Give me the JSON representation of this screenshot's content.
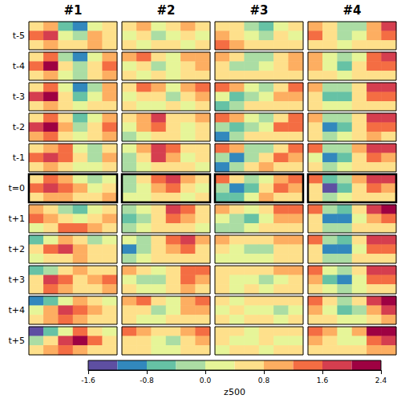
{
  "chart_data": {
    "type": "heatmap",
    "tick_labels": false,
    "columns": [
      "#1",
      "#2",
      "#3",
      "#4"
    ],
    "rows": [
      "t-5",
      "t-4",
      "t-3",
      "t-2",
      "t-1",
      "t=0",
      "t+1",
      "t+2",
      "t+3",
      "t+4",
      "t+5"
    ],
    "panels": [
      [
        [
          [
            0.4,
            0.8,
            -0.8,
            -1.0,
            0.0,
            0.4
          ],
          [
            1.2,
            1.6,
            0.0,
            -0.4,
            0.8,
            0.4
          ],
          [
            0.4,
            0.8,
            0.4,
            0.4,
            0.8,
            0.4
          ]
        ],
        [
          [
            0.4,
            0.8,
            0.0,
            0.4,
            0.8,
            0.4
          ],
          [
            0.0,
            0.4,
            -0.4,
            0.0,
            0.4,
            0.0
          ],
          [
            0.4,
            0.0,
            0.4,
            0.4,
            0.0,
            0.4
          ]
        ],
        [
          [
            0.4,
            0.4,
            -0.4,
            -0.8,
            0.0,
            0.4
          ],
          [
            0.8,
            0.4,
            0.0,
            -0.4,
            0.4,
            0.0
          ],
          [
            1.2,
            0.8,
            0.4,
            0.4,
            0.4,
            0.4
          ]
        ],
        [
          [
            0.8,
            0.4,
            -0.4,
            -0.4,
            0.8,
            1.6
          ],
          [
            1.2,
            0.4,
            -0.4,
            0.0,
            0.8,
            1.2
          ],
          [
            0.4,
            0.4,
            0.0,
            0.4,
            0.4,
            0.4
          ]
        ]
      ],
      [
        [
          [
            0.4,
            1.2,
            -0.4,
            -1.2,
            0.0,
            0.8
          ],
          [
            1.2,
            2.0,
            0.4,
            -0.4,
            0.4,
            1.2
          ],
          [
            0.4,
            0.8,
            0.0,
            -0.4,
            0.4,
            0.8
          ]
        ],
        [
          [
            0.8,
            1.2,
            0.4,
            0.0,
            0.8,
            0.8
          ],
          [
            0.0,
            0.4,
            -0.4,
            0.0,
            0.4,
            0.8
          ],
          [
            0.4,
            0.0,
            0.4,
            0.0,
            0.4,
            0.4
          ]
        ],
        [
          [
            0.8,
            0.4,
            -0.4,
            -0.4,
            0.4,
            0.8
          ],
          [
            0.4,
            -0.4,
            -0.4,
            0.0,
            0.4,
            0.8
          ],
          [
            0.4,
            0.4,
            0.4,
            0.4,
            0.4,
            0.4
          ]
        ],
        [
          [
            0.8,
            0.0,
            -0.4,
            0.0,
            1.2,
            1.6
          ],
          [
            0.8,
            0.0,
            -0.8,
            0.4,
            1.2,
            1.2
          ],
          [
            0.4,
            0.4,
            0.0,
            0.4,
            0.4,
            0.4
          ]
        ]
      ],
      [
        [
          [
            0.4,
            1.2,
            0.0,
            -1.2,
            -0.4,
            0.8
          ],
          [
            1.6,
            2.0,
            0.4,
            -0.8,
            0.0,
            0.8
          ],
          [
            0.4,
            0.8,
            0.4,
            0.0,
            0.4,
            0.4
          ]
        ],
        [
          [
            0.4,
            1.2,
            0.8,
            0.0,
            0.8,
            1.2
          ],
          [
            0.0,
            0.4,
            0.4,
            -0.4,
            0.4,
            0.8
          ],
          [
            0.4,
            0.0,
            0.0,
            0.4,
            0.0,
            0.4
          ]
        ],
        [
          [
            1.2,
            0.8,
            0.0,
            -0.4,
            0.4,
            1.2
          ],
          [
            0.0,
            -0.8,
            -0.4,
            0.0,
            0.8,
            0.8
          ],
          [
            -0.8,
            -0.4,
            0.4,
            0.4,
            0.4,
            0.4
          ]
        ],
        [
          [
            0.8,
            -0.4,
            -0.4,
            0.4,
            1.6,
            1.6
          ],
          [
            0.4,
            -0.8,
            -0.8,
            0.4,
            1.2,
            1.2
          ],
          [
            0.4,
            0.0,
            0.0,
            0.4,
            0.4,
            0.4
          ]
        ]
      ],
      [
        [
          [
            0.4,
            1.2,
            0.4,
            -0.8,
            0.0,
            0.8
          ],
          [
            1.6,
            2.0,
            0.8,
            -0.4,
            0.4,
            1.2
          ],
          [
            0.8,
            1.2,
            0.4,
            0.0,
            0.4,
            0.8
          ]
        ],
        [
          [
            0.4,
            0.8,
            1.6,
            0.4,
            0.4,
            0.8
          ],
          [
            0.0,
            0.8,
            1.2,
            0.4,
            0.0,
            0.4
          ],
          [
            -0.4,
            0.0,
            0.4,
            0.4,
            0.0,
            0.4
          ]
        ],
        [
          [
            1.2,
            0.8,
            0.0,
            -0.4,
            0.4,
            1.2
          ],
          [
            -0.4,
            -0.8,
            -0.4,
            0.0,
            1.2,
            1.2
          ],
          [
            -1.2,
            -0.4,
            0.4,
            0.4,
            0.4,
            0.4
          ]
        ],
        [
          [
            0.8,
            -0.4,
            -0.4,
            0.4,
            1.6,
            1.6
          ],
          [
            0.4,
            -1.2,
            -0.8,
            0.4,
            1.2,
            1.2
          ],
          [
            0.4,
            -0.4,
            0.0,
            0.4,
            0.8,
            0.4
          ]
        ]
      ],
      [
        [
          [
            0.4,
            0.8,
            1.2,
            0.0,
            -0.4,
            0.4
          ],
          [
            1.2,
            1.6,
            1.2,
            0.4,
            -0.4,
            0.8
          ],
          [
            0.4,
            0.8,
            0.4,
            0.0,
            0.0,
            0.4
          ]
        ],
        [
          [
            0.0,
            0.8,
            1.6,
            1.2,
            0.4,
            0.4
          ],
          [
            -0.4,
            0.4,
            1.6,
            0.8,
            0.0,
            0.4
          ],
          [
            -0.4,
            0.0,
            0.4,
            0.4,
            0.4,
            0.0
          ]
        ],
        [
          [
            1.2,
            0.8,
            -0.4,
            -0.4,
            0.4,
            1.2
          ],
          [
            -0.4,
            -1.2,
            -0.4,
            0.4,
            1.2,
            0.8
          ],
          [
            -1.2,
            -0.4,
            0.4,
            0.8,
            0.4,
            0.4
          ]
        ],
        [
          [
            1.2,
            -0.4,
            -0.4,
            0.8,
            1.6,
            1.6
          ],
          [
            0.0,
            -1.2,
            -0.8,
            0.4,
            1.2,
            0.8
          ],
          [
            0.4,
            -0.4,
            0.0,
            0.4,
            0.4,
            0.4
          ]
        ]
      ],
      [
        [
          [
            0.4,
            1.2,
            0.8,
            0.0,
            -0.4,
            0.0
          ],
          [
            1.2,
            1.6,
            1.2,
            0.8,
            0.0,
            0.4
          ],
          [
            0.4,
            0.8,
            0.8,
            0.4,
            0.4,
            0.8
          ]
        ],
        [
          [
            -0.4,
            0.4,
            1.2,
            1.6,
            0.8,
            0.4
          ],
          [
            -0.4,
            0.0,
            0.8,
            1.2,
            0.4,
            0.0
          ],
          [
            0.0,
            0.0,
            0.4,
            0.4,
            0.0,
            0.4
          ]
        ],
        [
          [
            1.2,
            0.4,
            -0.4,
            0.0,
            0.8,
            1.2
          ],
          [
            -0.4,
            -1.2,
            -0.8,
            0.4,
            1.2,
            0.8
          ],
          [
            -0.8,
            -0.8,
            0.0,
            0.8,
            0.4,
            0.4
          ]
        ],
        [
          [
            1.2,
            -0.8,
            -0.4,
            0.8,
            1.6,
            1.6
          ],
          [
            0.4,
            -1.6,
            -0.8,
            0.4,
            1.2,
            0.8
          ],
          [
            0.4,
            -0.4,
            0.0,
            0.4,
            0.4,
            0.4
          ]
        ]
      ],
      [
        [
          [
            0.8,
            0.4,
            -0.4,
            -0.8,
            0.0,
            0.4
          ],
          [
            1.2,
            0.8,
            0.4,
            0.0,
            0.4,
            0.8
          ],
          [
            0.0,
            0.4,
            1.2,
            1.2,
            0.8,
            0.4
          ]
        ],
        [
          [
            -0.4,
            0.0,
            0.4,
            1.6,
            1.2,
            0.4
          ],
          [
            -0.8,
            -0.4,
            0.4,
            1.2,
            0.8,
            0.4
          ],
          [
            -0.4,
            0.0,
            0.4,
            0.4,
            0.4,
            0.0
          ]
        ],
        [
          [
            0.8,
            0.4,
            0.0,
            0.4,
            1.2,
            1.2
          ],
          [
            0.0,
            -0.4,
            -0.8,
            0.0,
            0.8,
            0.8
          ],
          [
            -0.4,
            -0.4,
            0.0,
            0.4,
            0.4,
            0.4
          ]
        ],
        [
          [
            1.2,
            -0.4,
            -0.8,
            0.4,
            1.6,
            2.0
          ],
          [
            0.4,
            -1.2,
            -1.2,
            0.0,
            0.8,
            1.2
          ],
          [
            0.4,
            -0.4,
            -0.4,
            0.4,
            0.4,
            0.4
          ]
        ]
      ],
      [
        [
          [
            -0.8,
            0.0,
            0.8,
            0.4,
            -0.4,
            0.0
          ],
          [
            0.4,
            1.2,
            1.6,
            0.8,
            0.4,
            0.4
          ],
          [
            0.0,
            0.4,
            0.4,
            0.8,
            0.4,
            0.4
          ]
        ],
        [
          [
            0.0,
            -0.4,
            0.4,
            1.2,
            1.6,
            0.8
          ],
          [
            -1.2,
            -0.4,
            0.4,
            0.8,
            1.2,
            0.4
          ],
          [
            -0.4,
            0.0,
            0.4,
            0.4,
            0.4,
            0.4
          ]
        ],
        [
          [
            0.8,
            0.4,
            0.4,
            0.4,
            0.8,
            0.8
          ],
          [
            0.4,
            0.0,
            -0.4,
            -0.4,
            0.4,
            0.4
          ],
          [
            0.0,
            0.0,
            0.0,
            0.0,
            0.4,
            0.4
          ]
        ],
        [
          [
            1.2,
            -0.4,
            -0.8,
            0.4,
            1.6,
            1.6
          ],
          [
            0.4,
            -1.2,
            -1.2,
            0.0,
            1.2,
            1.2
          ],
          [
            0.4,
            -0.4,
            -0.4,
            0.4,
            0.4,
            0.4
          ]
        ]
      ],
      [
        [
          [
            -0.8,
            -0.4,
            0.4,
            0.8,
            0.4,
            0.4
          ],
          [
            0.4,
            1.6,
            1.2,
            0.4,
            0.8,
            1.2
          ],
          [
            0.4,
            1.2,
            0.8,
            0.4,
            0.4,
            0.8
          ]
        ],
        [
          [
            0.8,
            0.4,
            0.0,
            0.4,
            1.2,
            1.2
          ],
          [
            0.0,
            -0.4,
            -0.4,
            0.4,
            1.2,
            0.8
          ],
          [
            0.4,
            0.0,
            0.0,
            0.4,
            0.8,
            0.4
          ]
        ],
        [
          [
            0.4,
            0.4,
            0.4,
            0.4,
            0.8,
            0.8
          ],
          [
            0.4,
            0.0,
            0.0,
            -0.4,
            0.0,
            0.4
          ],
          [
            0.4,
            0.0,
            0.4,
            0.0,
            0.4,
            0.4
          ]
        ],
        [
          [
            1.2,
            0.0,
            -0.4,
            0.4,
            1.6,
            1.6
          ],
          [
            0.8,
            -0.8,
            -1.2,
            0.0,
            1.2,
            1.2
          ],
          [
            0.4,
            0.0,
            -0.4,
            0.0,
            0.4,
            0.4
          ]
        ]
      ],
      [
        [
          [
            -1.2,
            -0.8,
            0.0,
            0.8,
            0.4,
            0.0
          ],
          [
            0.0,
            0.8,
            1.6,
            1.2,
            0.8,
            0.4
          ],
          [
            0.4,
            0.8,
            1.2,
            0.8,
            0.4,
            0.4
          ]
        ],
        [
          [
            0.8,
            1.2,
            0.4,
            0.0,
            0.8,
            1.2
          ],
          [
            0.4,
            0.4,
            -0.4,
            0.0,
            0.8,
            0.8
          ],
          [
            0.4,
            0.0,
            0.0,
            0.4,
            0.4,
            0.4
          ]
        ],
        [
          [
            0.4,
            0.0,
            0.4,
            0.4,
            0.4,
            0.4
          ],
          [
            0.0,
            0.4,
            0.0,
            0.0,
            -0.4,
            0.0
          ],
          [
            0.4,
            0.0,
            0.4,
            0.4,
            0.0,
            0.4
          ]
        ],
        [
          [
            1.2,
            0.4,
            -0.4,
            0.4,
            1.6,
            2.0
          ],
          [
            0.8,
            0.0,
            -0.8,
            -0.4,
            0.8,
            1.6
          ],
          [
            0.4,
            0.4,
            0.0,
            0.0,
            0.4,
            0.8
          ]
        ]
      ],
      [
        [
          [
            -1.6,
            -0.8,
            0.0,
            1.2,
            0.4,
            0.0
          ],
          [
            -0.4,
            0.4,
            1.6,
            2.0,
            1.2,
            0.4
          ],
          [
            0.4,
            0.8,
            1.2,
            0.8,
            0.4,
            0.4
          ]
        ],
        [
          [
            1.2,
            0.8,
            0.4,
            0.4,
            0.8,
            1.2
          ],
          [
            0.4,
            0.4,
            0.0,
            -0.4,
            0.4,
            0.8
          ],
          [
            0.4,
            0.4,
            0.0,
            0.0,
            0.4,
            0.4
          ]
        ],
        [
          [
            0.4,
            0.4,
            0.0,
            0.4,
            0.4,
            0.4
          ],
          [
            0.4,
            0.0,
            0.0,
            0.4,
            0.0,
            0.0
          ],
          [
            0.0,
            0.4,
            0.4,
            0.0,
            0.4,
            0.4
          ]
        ],
        [
          [
            1.2,
            0.8,
            0.0,
            0.8,
            2.0,
            2.0
          ],
          [
            0.8,
            0.4,
            0.0,
            0.0,
            1.2,
            1.6
          ],
          [
            0.4,
            0.4,
            0.4,
            0.4,
            0.8,
            0.8
          ]
        ]
      ]
    ],
    "colorbar": {
      "label": "z500",
      "range": [
        -1.6,
        2.4
      ],
      "levels": [
        -1.6,
        -1.2,
        -0.8,
        -0.4,
        0,
        0.4,
        0.8,
        1.2,
        1.6,
        2.0,
        2.4
      ],
      "colors": [
        "#5e4fa2",
        "#3288bd",
        "#66c2a5",
        "#abdda4",
        "#e6f598",
        "#fee08b",
        "#fdae61",
        "#f46d43",
        "#d53e4f",
        "#9e0142"
      ],
      "ticks": [
        -1.6,
        -0.8,
        {
          "value": 0,
          "label": "0.0"
        },
        0.8,
        1.6,
        2.4
      ]
    }
  }
}
